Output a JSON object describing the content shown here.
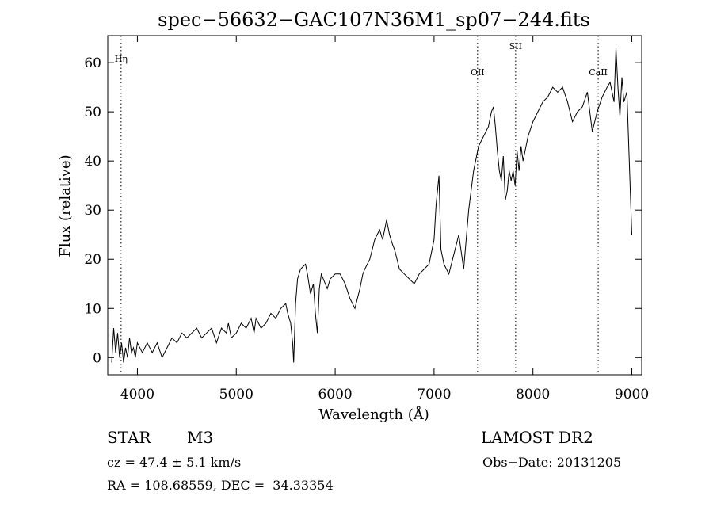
{
  "chart_data": {
    "type": "line",
    "title": "spec−56632−GAC107N36M1_sp07−244.fits",
    "xlabel": "Wavelength (Å)",
    "ylabel": "Flux (relative)",
    "xlim": [
      3700,
      9100
    ],
    "ylim": [
      -3.5,
      65.5
    ],
    "x_ticks": [
      4000,
      5000,
      6000,
      7000,
      8000,
      9000
    ],
    "y_ticks": [
      0,
      10,
      20,
      30,
      40,
      50,
      60
    ],
    "line_color": "#000000",
    "series": [
      {
        "x": [
          3740,
          3760,
          3780,
          3800,
          3820,
          3840,
          3860,
          3880,
          3900,
          3920,
          3940,
          3960,
          3980,
          4000,
          4050,
          4100,
          4150,
          4200,
          4250,
          4300,
          4350,
          4400,
          4450,
          4500,
          4550,
          4600,
          4650,
          4700,
          4750,
          4800,
          4850,
          4900,
          4920,
          4950,
          5000,
          5050,
          5100,
          5150,
          5180,
          5200,
          5250,
          5300,
          5350,
          5400,
          5450,
          5500,
          5520,
          5550,
          5570,
          5580,
          5600,
          5620,
          5650,
          5700,
          5720,
          5750,
          5780,
          5800,
          5820,
          5840,
          5860,
          5880,
          5900,
          5920,
          5950,
          6000,
          6050,
          6100,
          6150,
          6200,
          6250,
          6280,
          6300,
          6350,
          6400,
          6450,
          6480,
          6520,
          6550,
          6580,
          6600,
          6650,
          6700,
          6750,
          6800,
          6850,
          6900,
          6950,
          7000,
          7020,
          7050,
          7070,
          7100,
          7150,
          7200,
          7250,
          7300,
          7350,
          7400,
          7450,
          7500,
          7550,
          7580,
          7600,
          7620,
          7640,
          7660,
          7680,
          7700,
          7720,
          7740,
          7760,
          7780,
          7800,
          7820,
          7840,
          7860,
          7880,
          7900,
          7950,
          8000,
          8050,
          8100,
          8150,
          8200,
          8250,
          8300,
          8350,
          8400,
          8450,
          8500,
          8550,
          8600,
          8650,
          8700,
          8750,
          8780,
          8800,
          8820,
          8840,
          8860,
          8880,
          8900,
          8920,
          8950,
          9000
        ],
        "y": [
          -1,
          6,
          1,
          5,
          0,
          3,
          -1,
          2,
          0,
          4,
          1,
          2,
          0,
          3,
          1,
          3,
          1,
          3,
          0,
          2,
          4,
          3,
          5,
          4,
          5,
          6,
          4,
          5,
          6,
          3,
          6,
          5,
          7,
          4,
          5,
          7,
          6,
          8,
          5,
          8,
          6,
          7,
          9,
          8,
          10,
          11,
          9,
          7,
          3,
          -1,
          11,
          16,
          18,
          19,
          17,
          13,
          15,
          9,
          5,
          14,
          17,
          16,
          15,
          14,
          16,
          17,
          17,
          15,
          12,
          10,
          14,
          17,
          18,
          20,
          24,
          26,
          24,
          28,
          25,
          23,
          22,
          18,
          17,
          16,
          15,
          17,
          18,
          19,
          24,
          31,
          37,
          22,
          19,
          17,
          21,
          25,
          18,
          30,
          38,
          43,
          45,
          47,
          50,
          51,
          47,
          42,
          38,
          36,
          41,
          32,
          34,
          38,
          36,
          38,
          35,
          42,
          38,
          43,
          40,
          45,
          48,
          50,
          52,
          53,
          55,
          54,
          55,
          52,
          48,
          50,
          51,
          54,
          46,
          50,
          53,
          55,
          56,
          54,
          52,
          63,
          55,
          49,
          57,
          52,
          54,
          25
        ],
        "description_note": ""
      }
    ],
    "annotations": [
      {
        "label": "Hη",
        "x": 3835
      },
      {
        "label": "OII",
        "x": 7440
      },
      {
        "label": "SII",
        "x": 7825
      },
      {
        "label": "CaII",
        "x": 8660
      }
    ]
  },
  "info": {
    "class_label": "STAR",
    "subclass": "M3",
    "survey": "LAMOST DR2",
    "cz": "cz = 47.4 ± 5.1 km/s",
    "obs_date": "Obs−Date: 20131205",
    "radec": "RA = 108.68559, DEC =  34.33354"
  }
}
